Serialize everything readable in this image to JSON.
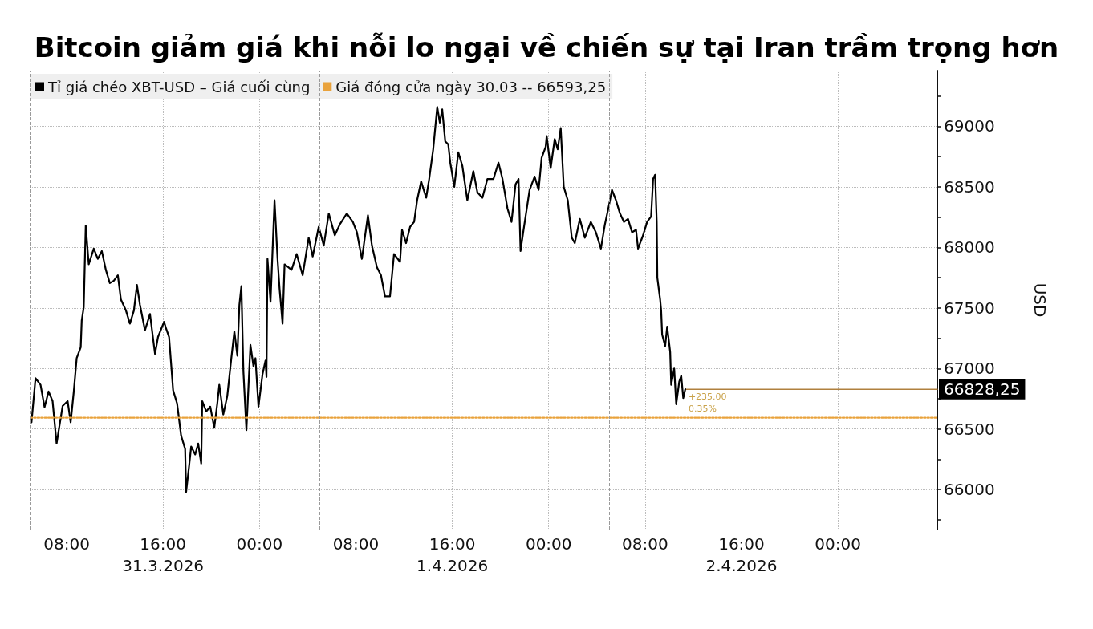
{
  "chart_data": {
    "type": "line",
    "title": "Bitcoin giảm giá khi nỗi lo ngại về chiến sự tại Iran trầm trọng hơn",
    "ylabel": "USD",
    "xlim": [
      "2026-03-31T05:00",
      "2026-04-03T08:15"
    ],
    "xticks": [
      {
        "value": "2026-03-31T08:00",
        "label": "08:00"
      },
      {
        "value": "2026-03-31T16:00",
        "label": "16:00\n31.3.2026"
      },
      {
        "value": "2026-04-01T00:00",
        "label": "00:00"
      },
      {
        "value": "2026-04-01T08:00",
        "label": "08:00"
      },
      {
        "value": "2026-04-01T16:00",
        "label": "16:00\n1.4.2026"
      },
      {
        "value": "2026-04-02T00:00",
        "label": "00:00"
      },
      {
        "value": "2026-04-02T08:00",
        "label": "08:00"
      },
      {
        "value": "2026-04-02T16:00",
        "label": "16:00\n2.4.2026"
      },
      {
        "value": "2026-04-03T00:00",
        "label": "00:00"
      }
    ],
    "ylim": [
      65670,
      69460
    ],
    "yticks": [
      {
        "value": 65750,
        "label": null
      },
      66000,
      {
        "value": 66250,
        "label": null
      },
      66500,
      {
        "value": 66750,
        "label": null
      },
      67000,
      {
        "value": 67250,
        "label": null
      },
      67500,
      {
        "value": 67750,
        "label": null
      },
      68000,
      {
        "value": 68250,
        "label": null
      },
      68500,
      {
        "value": 68750,
        "label": null
      },
      69000,
      {
        "value": 69250,
        "label": null
      }
    ],
    "grid": true,
    "legend": "top left",
    "series": [
      {
        "name": "Tỉ giá chéo XBT-USD – Giá cuối cùng",
        "color": "#000000",
        "x": [
          "2026-03-31T05:05",
          "2026-03-31T05:25",
          "2026-03-31T05:50",
          "2026-03-31T06:10",
          "2026-03-31T06:30",
          "2026-03-31T06:50",
          "2026-03-31T07:10",
          "2026-03-31T07:40",
          "2026-03-31T08:05",
          "2026-03-31T08:20",
          "2026-03-31T08:35",
          "2026-03-31T08:50",
          "2026-03-31T09:10",
          "2026-03-31T09:15",
          "2026-03-31T09:25",
          "2026-03-31T09:35",
          "2026-03-31T09:50",
          "2026-03-31T10:15",
          "2026-03-31T10:35",
          "2026-03-31T10:55",
          "2026-03-31T11:15",
          "2026-03-31T11:35",
          "2026-03-31T11:55",
          "2026-03-31T12:15",
          "2026-03-31T12:30",
          "2026-03-31T12:55",
          "2026-03-31T13:15",
          "2026-03-31T13:35",
          "2026-03-31T13:50",
          "2026-03-31T14:05",
          "2026-03-31T14:30",
          "2026-03-31T14:55",
          "2026-03-31T15:20",
          "2026-03-31T15:35",
          "2026-03-31T16:05",
          "2026-03-31T16:15",
          "2026-03-31T16:30",
          "2026-03-31T16:50",
          "2026-03-31T17:10",
          "2026-03-31T17:30",
          "2026-03-31T17:50",
          "2026-03-31T17:55",
          "2026-03-31T18:10",
          "2026-03-31T18:20",
          "2026-03-31T18:40",
          "2026-03-31T18:55",
          "2026-03-31T19:10",
          "2026-03-31T19:15",
          "2026-03-31T19:35",
          "2026-03-31T19:55",
          "2026-03-31T20:15",
          "2026-03-31T20:30",
          "2026-03-31T20:40",
          "2026-03-31T21:00",
          "2026-03-31T21:20",
          "2026-03-31T21:40",
          "2026-03-31T21:55",
          "2026-03-31T22:10",
          "2026-03-31T22:20",
          "2026-03-31T22:30",
          "2026-03-31T22:40",
          "2026-03-31T22:55",
          "2026-03-31T23:15",
          "2026-03-31T23:30",
          "2026-03-31T23:40",
          "2026-03-31T23:55",
          "2026-04-01T00:15",
          "2026-04-01T00:30",
          "2026-04-01T00:35",
          "2026-04-01T00:40",
          "2026-04-01T00:55",
          "2026-04-01T01:15",
          "2026-04-01T01:30",
          "2026-04-01T01:40",
          "2026-04-01T01:55",
          "2026-04-01T02:05",
          "2026-04-01T02:40",
          "2026-04-01T03:05",
          "2026-04-01T03:35",
          "2026-04-01T04:05",
          "2026-04-01T04:25",
          "2026-04-01T04:55",
          "2026-04-01T05:20",
          "2026-04-01T05:45",
          "2026-04-01T06:15",
          "2026-04-01T06:40",
          "2026-04-01T07:15",
          "2026-04-01T07:45",
          "2026-04-01T08:05",
          "2026-04-01T08:30",
          "2026-04-01T09:00",
          "2026-04-01T09:20",
          "2026-04-01T09:45",
          "2026-04-01T10:05",
          "2026-04-01T10:25",
          "2026-04-01T10:50",
          "2026-04-01T11:10",
          "2026-04-01T11:40",
          "2026-04-01T11:50",
          "2026-04-01T12:10",
          "2026-04-01T12:30",
          "2026-04-01T12:50",
          "2026-04-01T13:05",
          "2026-04-01T13:25",
          "2026-04-01T13:50",
          "2026-04-01T14:05",
          "2026-04-01T14:25",
          "2026-04-01T14:45",
          "2026-04-01T14:58",
          "2026-04-01T15:10",
          "2026-04-01T15:25",
          "2026-04-01T15:40",
          "2026-04-01T15:50",
          "2026-04-01T16:10",
          "2026-04-01T16:30",
          "2026-04-01T16:50",
          "2026-04-01T17:15",
          "2026-04-01T17:45",
          "2026-04-01T18:05",
          "2026-04-01T18:30",
          "2026-04-01T18:55",
          "2026-04-01T19:25",
          "2026-04-01T19:50",
          "2026-04-01T20:10",
          "2026-04-01T20:35",
          "2026-04-01T20:55",
          "2026-04-01T21:15",
          "2026-04-01T21:30",
          "2026-04-01T21:40",
          "2026-04-01T21:55",
          "2026-04-01T22:25",
          "2026-04-01T22:50",
          "2026-04-01T23:10",
          "2026-04-01T23:25",
          "2026-04-01T23:45",
          "2026-04-01T23:50",
          "2026-04-02T00:10",
          "2026-04-02T00:30",
          "2026-04-02T00:45",
          "2026-04-02T01:00",
          "2026-04-02T01:15",
          "2026-04-02T01:35",
          "2026-04-02T01:55",
          "2026-04-02T02:10",
          "2026-04-02T02:35",
          "2026-04-02T03:00",
          "2026-04-02T03:30",
          "2026-04-02T03:55",
          "2026-04-02T04:20",
          "2026-04-02T04:40",
          "2026-04-02T05:00",
          "2026-04-02T05:15",
          "2026-04-02T05:35",
          "2026-04-02T05:55",
          "2026-04-02T06:15",
          "2026-04-02T06:35",
          "2026-04-02T06:55",
          "2026-04-02T07:15",
          "2026-04-02T07:25",
          "2026-04-02T07:50",
          "2026-04-02T08:10",
          "2026-04-02T08:30",
          "2026-04-02T08:40",
          "2026-04-02T08:50",
          "2026-04-02T08:58",
          "2026-04-02T09:01",
          "2026-04-02T09:15",
          "2026-04-02T09:20",
          "2026-04-02T09:25",
          "2026-04-02T09:40",
          "2026-04-02T09:50",
          "2026-04-02T10:05",
          "2026-04-02T10:10",
          "2026-04-02T10:25",
          "2026-04-02T10:35",
          "2026-04-02T10:50",
          "2026-04-02T11:00",
          "2026-04-02T11:10",
          "2026-04-02T11:20"
        ],
        "values": [
          66555,
          66920,
          66865,
          66680,
          66810,
          66730,
          66380,
          66690,
          66730,
          66555,
          66800,
          67085,
          67175,
          67395,
          67505,
          68180,
          67860,
          67990,
          67905,
          67970,
          67815,
          67705,
          67725,
          67770,
          67570,
          67480,
          67370,
          67480,
          67690,
          67525,
          67315,
          67450,
          67120,
          67260,
          67385,
          67330,
          67260,
          66820,
          66710,
          66445,
          66335,
          65980,
          66200,
          66355,
          66290,
          66380,
          66215,
          66730,
          66645,
          66685,
          66510,
          66710,
          66865,
          66620,
          66775,
          67085,
          67305,
          67105,
          67525,
          67680,
          66975,
          66490,
          67195,
          67020,
          67085,
          66685,
          66950,
          67065,
          66930,
          67905,
          67550,
          68390,
          67905,
          67660,
          67370,
          67860,
          67815,
          67945,
          67770,
          68080,
          67925,
          68170,
          68015,
          68280,
          68100,
          68190,
          68280,
          68210,
          68125,
          67905,
          68265,
          68015,
          67835,
          67770,
          67595,
          67595,
          67945,
          67880,
          68145,
          68035,
          68170,
          68210,
          68390,
          68545,
          68410,
          68565,
          68810,
          69160,
          69030,
          69140,
          68875,
          68850,
          68700,
          68500,
          68785,
          68675,
          68390,
          68630,
          68455,
          68410,
          68565,
          68565,
          68700,
          68565,
          68320,
          68210,
          68520,
          68565,
          67970,
          68145,
          68475,
          68585,
          68475,
          68740,
          68830,
          68920,
          68655,
          68895,
          68810,
          68985,
          68500,
          68390,
          68080,
          68035,
          68235,
          68080,
          68210,
          68125,
          67990,
          68190,
          68345,
          68475,
          68390,
          68280,
          68210,
          68235,
          68125,
          68145,
          67990,
          68100,
          68210,
          68255,
          68565,
          68600,
          68210,
          67750,
          67570,
          67480,
          67280,
          67185,
          67345,
          67135,
          66865,
          67000,
          66705,
          66890,
          66940,
          66755,
          66828.25
        ]
      },
      {
        "name": "Giá đóng cửa ngày 30.03 -- 66593,25",
        "color": "#e9a23b",
        "line_style": "dotted",
        "x": [
          "2026-03-31T05:00",
          "2026-04-03T08:15"
        ],
        "values": [
          66593.25,
          66593.25
        ]
      },
      {
        "color": "#b0803e",
        "x": [
          "2026-04-02T11:20",
          "2026-04-03T08:15"
        ],
        "values": [
          66828.25,
          66828.25
        ],
        "value_labels": [
          null,
          "66828,25"
        ]
      }
    ],
    "ref_lines": [
      {
        "axis": "x",
        "value": "2026-03-31T05:00",
        "line_style": "dashed",
        "color": "#9a9a9a"
      },
      {
        "axis": "x",
        "value": "2026-04-01T05:00",
        "line_style": "dashed",
        "color": "#9a9a9a"
      },
      {
        "axis": "x",
        "value": "2026-04-02T05:00",
        "line_style": "dashed",
        "color": "#9a9a9a"
      }
    ],
    "annotations": [
      {
        "text": "+235.00",
        "x": "2026-04-02T11:20",
        "y": 66828.25
      },
      {
        "text": "0.35%",
        "x": "2026-04-02T11:20",
        "y": 66828.25
      }
    ]
  }
}
